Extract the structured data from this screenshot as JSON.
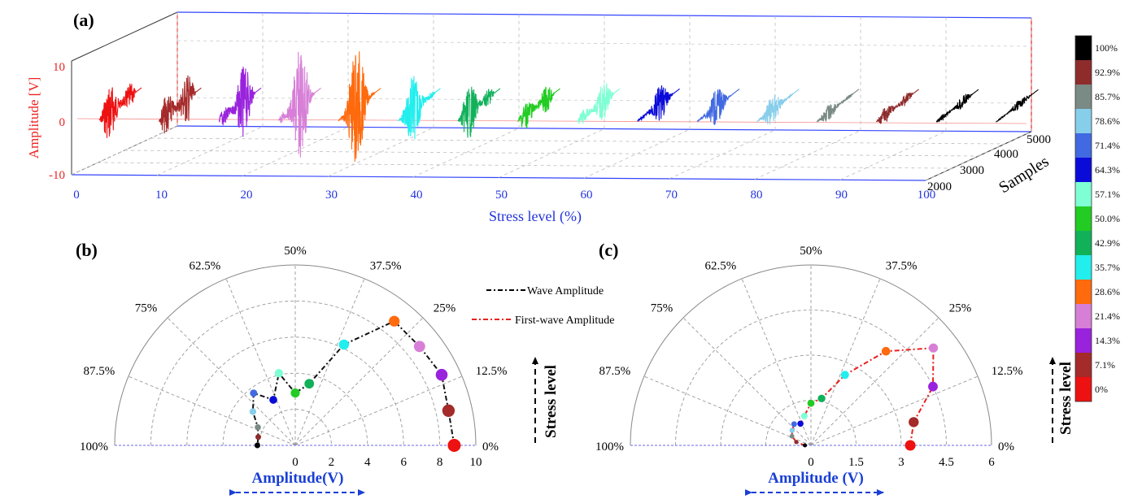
{
  "stress_levels": [
    "0%",
    "7.1%",
    "14.3%",
    "21.4%",
    "28.6%",
    "35.7%",
    "42.9%",
    "50.0%",
    "57.1%",
    "64.3%",
    "71.4%",
    "78.6%",
    "85.7%",
    "92.9%",
    "100%"
  ],
  "level_colors": [
    "#ee1111",
    "#a52a2a",
    "#9922dd",
    "#d77fd7",
    "#ff6a0d",
    "#22eeee",
    "#11b15a",
    "#22cc22",
    "#7fffd4",
    "#0b0bd9",
    "#4169e1",
    "#87ceeb",
    "#7a8a84",
    "#8e2c2c",
    "#000000"
  ],
  "chart_data": [
    {
      "type": "line",
      "panel_label": "(a)",
      "ylabel": "Amplitude [V]",
      "xlabel": "Stress level (%)",
      "zlabel": "Samples",
      "ylim": [
        -10,
        10
      ],
      "y_ticks": [
        "10",
        "0",
        "-10"
      ],
      "xlim": [
        0,
        100
      ],
      "x_ticks": [
        "0",
        "10",
        "20",
        "30",
        "40",
        "50",
        "60",
        "70",
        "80",
        "90",
        "100"
      ],
      "z_ticks": [
        "2000",
        "3000",
        "4000",
        "5000"
      ],
      "series_amplitude": [
        7.0,
        8.0,
        7.8,
        10.5,
        10.8,
        6.5,
        6.2,
        4.8,
        4.5,
        3.5,
        3.2,
        2.8,
        1.8,
        2.5,
        1.6,
        1.0
      ],
      "grid": true
    },
    {
      "type": "line",
      "panel_label": "(b)",
      "coordinate": "polar-semicircle",
      "angle_ticks": [
        "0%",
        "12.5%",
        "25%",
        "37.5%",
        "50%",
        "62.5%",
        "75%",
        "87.5%",
        "100%"
      ],
      "radial_ticks": [
        "0",
        "2",
        "4",
        "6",
        "8",
        "10"
      ],
      "radial_max": 10,
      "xlabel": "Amplitude(V)",
      "side_label": "Stress level",
      "legend": [
        "Wave Amplitude",
        "First-wave Amplitude"
      ],
      "series": [
        {
          "name": "Wave Amplitude",
          "stress": [
            0,
            7.1,
            14.3,
            21.4,
            28.6,
            35.7,
            42.9,
            50.0,
            57.1,
            64.3,
            71.4,
            78.6,
            85.7,
            92.9,
            100
          ],
          "amplitude": [
            8.8,
            8.7,
            9.0,
            8.8,
            8.8,
            6.2,
            3.5,
            2.9,
            4.1,
            2.8,
            3.7,
            3.0,
            2.3,
            2.1,
            2.1
          ]
        }
      ]
    },
    {
      "type": "line",
      "panel_label": "(c)",
      "coordinate": "polar-semicircle",
      "angle_ticks": [
        "0%",
        "12.5%",
        "25%",
        "37.5%",
        "50%",
        "62.5%",
        "75%",
        "87.5%",
        "100%"
      ],
      "radial_ticks": [
        "0",
        "1.5",
        "3",
        "4.5",
        "6"
      ],
      "radial_max": 6,
      "xlabel": "Amplitude (V)",
      "side_label": "Stress level",
      "series": [
        {
          "name": "First-wave Amplitude",
          "stress": [
            0,
            7.1,
            14.3,
            21.4,
            28.6,
            35.7,
            42.9,
            50.0,
            57.1,
            64.3,
            71.4,
            78.6,
            85.7,
            92.9,
            100
          ],
          "amplitude": [
            3.3,
            3.5,
            4.5,
            5.2,
            4.0,
            2.6,
            1.6,
            1.4,
            1.0,
            0.8,
            0.9,
            0.8,
            0.7,
            0.5,
            0.2
          ]
        }
      ]
    }
  ]
}
